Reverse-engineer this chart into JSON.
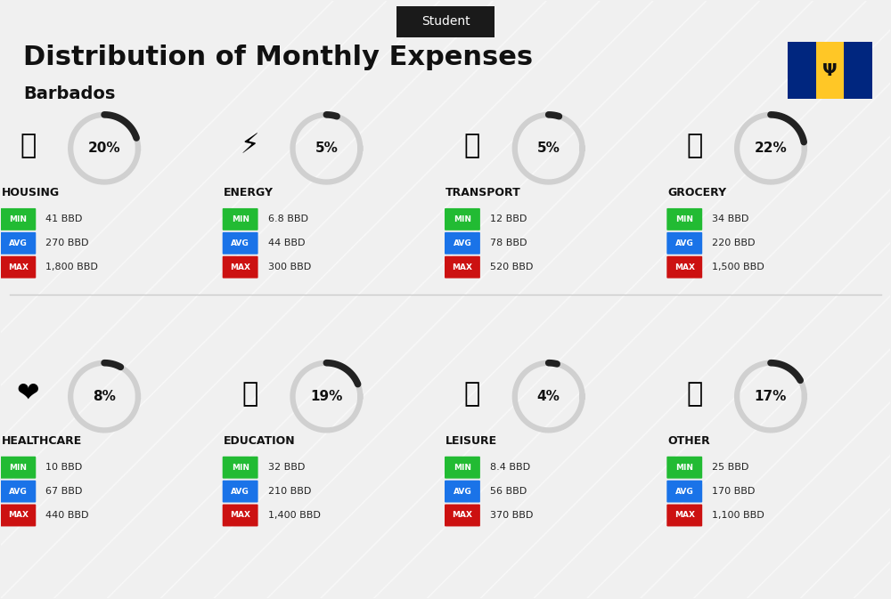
{
  "title": "Distribution of Monthly Expenses",
  "subtitle": "Barbados",
  "tag": "Student",
  "background_color": "#f0f0f0",
  "categories": [
    {
      "name": "HOUSING",
      "percent": 20,
      "min_val": "41 BBD",
      "avg_val": "270 BBD",
      "max_val": "1,800 BBD",
      "icon": "housing",
      "row": 0,
      "col": 0
    },
    {
      "name": "ENERGY",
      "percent": 5,
      "min_val": "6.8 BBD",
      "avg_val": "44 BBD",
      "max_val": "300 BBD",
      "icon": "energy",
      "row": 0,
      "col": 1
    },
    {
      "name": "TRANSPORT",
      "percent": 5,
      "min_val": "12 BBD",
      "avg_val": "78 BBD",
      "max_val": "520 BBD",
      "icon": "transport",
      "row": 0,
      "col": 2
    },
    {
      "name": "GROCERY",
      "percent": 22,
      "min_val": "34 BBD",
      "avg_val": "220 BBD",
      "max_val": "1,500 BBD",
      "icon": "grocery",
      "row": 0,
      "col": 3
    },
    {
      "name": "HEALTHCARE",
      "percent": 8,
      "min_val": "10 BBD",
      "avg_val": "67 BBD",
      "max_val": "440 BBD",
      "icon": "healthcare",
      "row": 1,
      "col": 0
    },
    {
      "name": "EDUCATION",
      "percent": 19,
      "min_val": "32 BBD",
      "avg_val": "210 BBD",
      "max_val": "1,400 BBD",
      "icon": "education",
      "row": 1,
      "col": 1
    },
    {
      "name": "LEISURE",
      "percent": 4,
      "min_val": "8.4 BBD",
      "avg_val": "56 BBD",
      "max_val": "370 BBD",
      "icon": "leisure",
      "row": 1,
      "col": 2
    },
    {
      "name": "OTHER",
      "percent": 17,
      "min_val": "25 BBD",
      "avg_val": "170 BBD",
      "max_val": "1,100 BBD",
      "icon": "other",
      "row": 1,
      "col": 3
    }
  ],
  "min_color": "#22bb33",
  "avg_color": "#1a73e8",
  "max_color": "#cc1111",
  "label_text_color": "#ffffff",
  "value_text_color": "#222222",
  "category_text_color": "#111111",
  "donut_filled_color": "#222222",
  "donut_empty_color": "#d0d0d0",
  "tag_bg": "#1a1a1a",
  "tag_text": "#ffffff"
}
